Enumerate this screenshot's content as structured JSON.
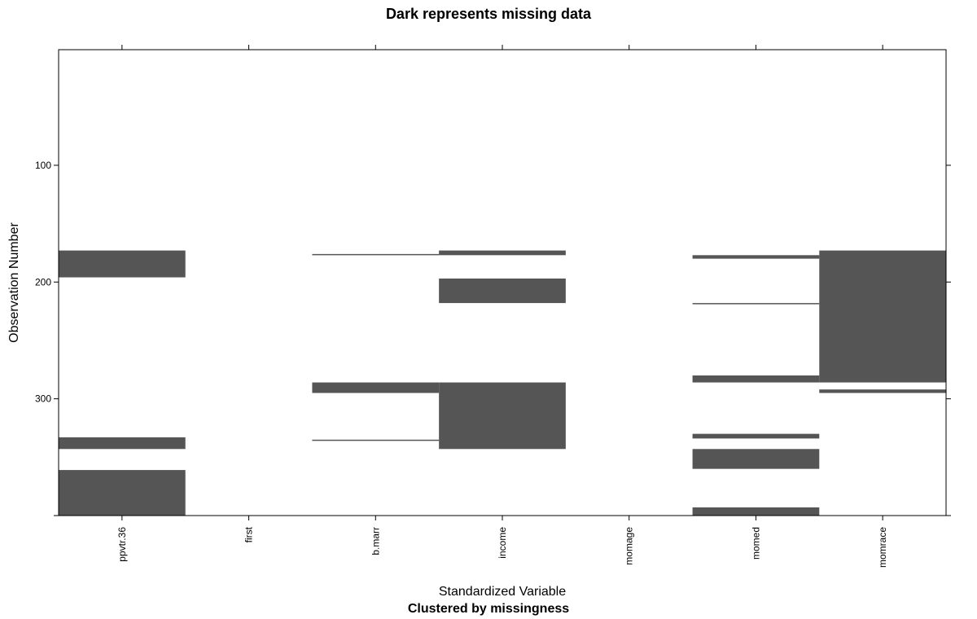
{
  "chart_data": {
    "type": "heatmap",
    "title": "Dark represents missing data",
    "xlabel": "Standardized Variable",
    "subtitle": "Clustered by missingness",
    "ylabel": "Observation Number",
    "variables": [
      "ppvtr.36",
      "first",
      "b.marr",
      "income",
      "momage",
      "momed",
      "momrace"
    ],
    "y_ticks": [
      100,
      200,
      300
    ],
    "ylim": [
      400,
      1
    ],
    "missing_color": "#555555",
    "present_color": "#ffffff",
    "missing_ranges": [
      {
        "variable": "ppvtr.36",
        "ranges": [
          [
            173,
            196
          ],
          [
            333,
            343
          ],
          [
            361,
            400
          ]
        ]
      },
      {
        "variable": "first",
        "ranges": []
      },
      {
        "variable": "b.marr",
        "ranges": [
          [
            176,
            177
          ],
          [
            286,
            295
          ],
          [
            335,
            336
          ]
        ]
      },
      {
        "variable": "income",
        "ranges": [
          [
            173,
            177
          ],
          [
            197,
            218
          ],
          [
            286,
            343
          ]
        ]
      },
      {
        "variable": "momage",
        "ranges": []
      },
      {
        "variable": "momed",
        "ranges": [
          [
            177,
            180
          ],
          [
            218,
            219
          ],
          [
            280,
            286
          ],
          [
            330,
            334
          ],
          [
            343,
            360
          ],
          [
            393,
            400
          ]
        ]
      },
      {
        "variable": "momrace",
        "ranges": [
          [
            173,
            286
          ],
          [
            292,
            295
          ]
        ]
      }
    ]
  }
}
